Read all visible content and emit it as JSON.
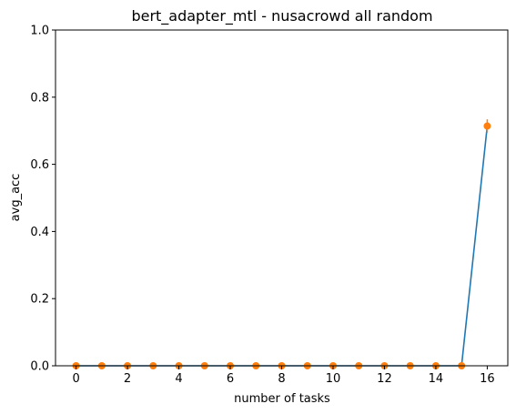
{
  "chart_data": {
    "type": "line",
    "title": "bert_adapter_mtl - nusacrowd all random",
    "xlabel": "number of tasks",
    "ylabel": "avg_acc",
    "xlim": [
      -0.8,
      16.8
    ],
    "ylim": [
      0,
      1.0
    ],
    "xticks": [
      0,
      2,
      4,
      6,
      8,
      10,
      12,
      14,
      16
    ],
    "yticks": [
      0.0,
      0.2,
      0.4,
      0.6,
      0.8,
      1.0
    ],
    "grid": false,
    "line_series": {
      "x": [
        0,
        1,
        2,
        3,
        4,
        5,
        6,
        7,
        8,
        9,
        10,
        11,
        12,
        13,
        14,
        15,
        16
      ],
      "y": [
        0,
        0,
        0,
        0,
        0,
        0,
        0,
        0,
        0,
        0,
        0,
        0,
        0,
        0,
        0,
        0,
        0.714
      ],
      "color": "#1f77b4"
    },
    "points_series": {
      "x": [
        0,
        1,
        2,
        3,
        4,
        5,
        6,
        7,
        8,
        9,
        10,
        11,
        12,
        13,
        14,
        15,
        16
      ],
      "y": [
        0,
        0,
        0,
        0,
        0,
        0,
        0,
        0,
        0,
        0,
        0,
        0,
        0,
        0,
        0,
        0,
        0.714
      ],
      "yerr": [
        0,
        0,
        0,
        0,
        0,
        0,
        0,
        0,
        0,
        0,
        0,
        0,
        0,
        0,
        0,
        0,
        0.02
      ],
      "color": "#ff7f0e"
    }
  }
}
